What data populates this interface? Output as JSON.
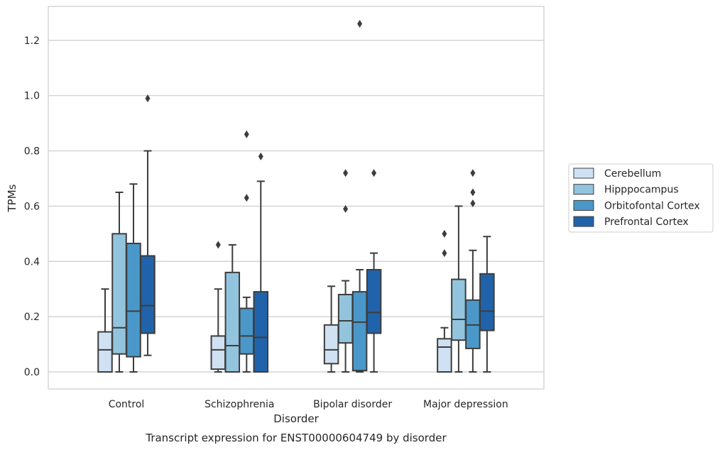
{
  "chart_data": {
    "type": "box",
    "title": "",
    "caption": "Transcript expression for ENST00000604749 by disorder",
    "xlabel": "Disorder",
    "ylabel": "TPMs",
    "ylim": [
      -0.06,
      1.32
    ],
    "yticks": [
      "0.0",
      "0.2",
      "0.4",
      "0.6",
      "0.8",
      "1.0",
      "1.2"
    ],
    "ytick_values": [
      0,
      0.2,
      0.4,
      0.6,
      0.8,
      1.0,
      1.2
    ],
    "grid": "horizontal",
    "legend_placement": "right",
    "categories": [
      "Control",
      "Schizophrenia",
      "Bipolar disorder",
      "Major depression"
    ],
    "series": [
      {
        "name": "Cerebellum",
        "color": "#cfe1f2",
        "boxes": [
          {
            "whisker_low": 0.0,
            "q1": 0.0,
            "median": 0.08,
            "q3": 0.145,
            "whisker_high": 0.3,
            "outliers": []
          },
          {
            "whisker_low": 0.0,
            "q1": 0.01,
            "median": 0.08,
            "q3": 0.13,
            "whisker_high": 0.3,
            "outliers": [
              0.46
            ]
          },
          {
            "whisker_low": 0.0,
            "q1": 0.03,
            "median": 0.08,
            "q3": 0.17,
            "whisker_high": 0.31,
            "outliers": []
          },
          {
            "whisker_low": 0.0,
            "q1": 0.0,
            "median": 0.09,
            "q3": 0.12,
            "whisker_high": 0.16,
            "outliers": [
              0.43,
              0.5
            ]
          }
        ]
      },
      {
        "name": "Hipppocampus",
        "color": "#93c4de",
        "boxes": [
          {
            "whisker_low": 0.0,
            "q1": 0.065,
            "median": 0.16,
            "q3": 0.5,
            "whisker_high": 0.65,
            "outliers": []
          },
          {
            "whisker_low": 0.0,
            "q1": 0.0,
            "median": 0.095,
            "q3": 0.36,
            "whisker_high": 0.46,
            "outliers": []
          },
          {
            "whisker_low": 0.0,
            "q1": 0.105,
            "median": 0.185,
            "q3": 0.28,
            "whisker_high": 0.33,
            "outliers": [
              0.59,
              0.72
            ]
          },
          {
            "whisker_low": 0.0,
            "q1": 0.115,
            "median": 0.19,
            "q3": 0.335,
            "whisker_high": 0.6,
            "outliers": []
          }
        ]
      },
      {
        "name": "Orbitofontal Cortex",
        "color": "#4a98c9",
        "boxes": [
          {
            "whisker_low": 0.0,
            "q1": 0.055,
            "median": 0.22,
            "q3": 0.465,
            "whisker_high": 0.68,
            "outliers": []
          },
          {
            "whisker_low": 0.0,
            "q1": 0.065,
            "median": 0.13,
            "q3": 0.23,
            "whisker_high": 0.27,
            "outliers": [
              0.63,
              0.86
            ]
          },
          {
            "whisker_low": 0.0,
            "q1": 0.005,
            "median": 0.18,
            "q3": 0.29,
            "whisker_high": 0.37,
            "outliers": [
              1.26
            ]
          },
          {
            "whisker_low": 0.0,
            "q1": 0.085,
            "median": 0.17,
            "q3": 0.26,
            "whisker_high": 0.44,
            "outliers": [
              0.61,
              0.65,
              0.72
            ]
          }
        ]
      },
      {
        "name": "Prefrontal Cortex",
        "color": "#2163aa",
        "boxes": [
          {
            "whisker_low": 0.06,
            "q1": 0.14,
            "median": 0.24,
            "q3": 0.42,
            "whisker_high": 0.8,
            "outliers": [
              0.99
            ]
          },
          {
            "whisker_low": 0.0,
            "q1": 0.0,
            "median": 0.125,
            "q3": 0.29,
            "whisker_high": 0.69,
            "outliers": [
              0.78
            ]
          },
          {
            "whisker_low": 0.0,
            "q1": 0.14,
            "median": 0.215,
            "q3": 0.37,
            "whisker_high": 0.43,
            "outliers": [
              0.72
            ]
          },
          {
            "whisker_low": 0.0,
            "q1": 0.15,
            "median": 0.22,
            "q3": 0.355,
            "whisker_high": 0.49,
            "outliers": []
          }
        ]
      }
    ]
  }
}
